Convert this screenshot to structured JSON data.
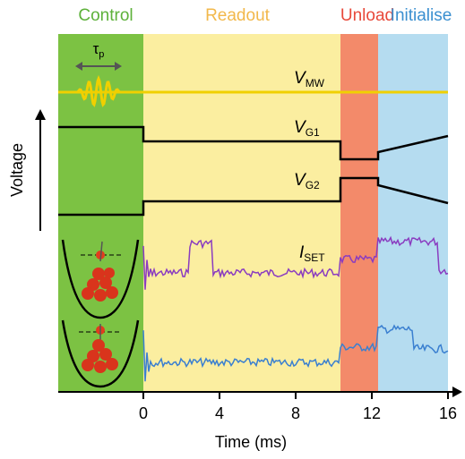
{
  "phases": [
    "Control",
    "Readout",
    "Unload",
    "Initialise"
  ],
  "pulse_width": {
    "symbol": "τ",
    "subscript": "p"
  },
  "signals": [
    {
      "symbol": "V",
      "subscript": "MW"
    },
    {
      "symbol": "V",
      "subscript": "G1"
    },
    {
      "symbol": "V",
      "subscript": "G2"
    },
    {
      "symbol": "I",
      "subscript": "SET"
    }
  ],
  "y_axis_label": "Voltage",
  "time_axis": {
    "label": "Time (ms)",
    "ticks": [
      0,
      4,
      8,
      12,
      16
    ]
  }
}
